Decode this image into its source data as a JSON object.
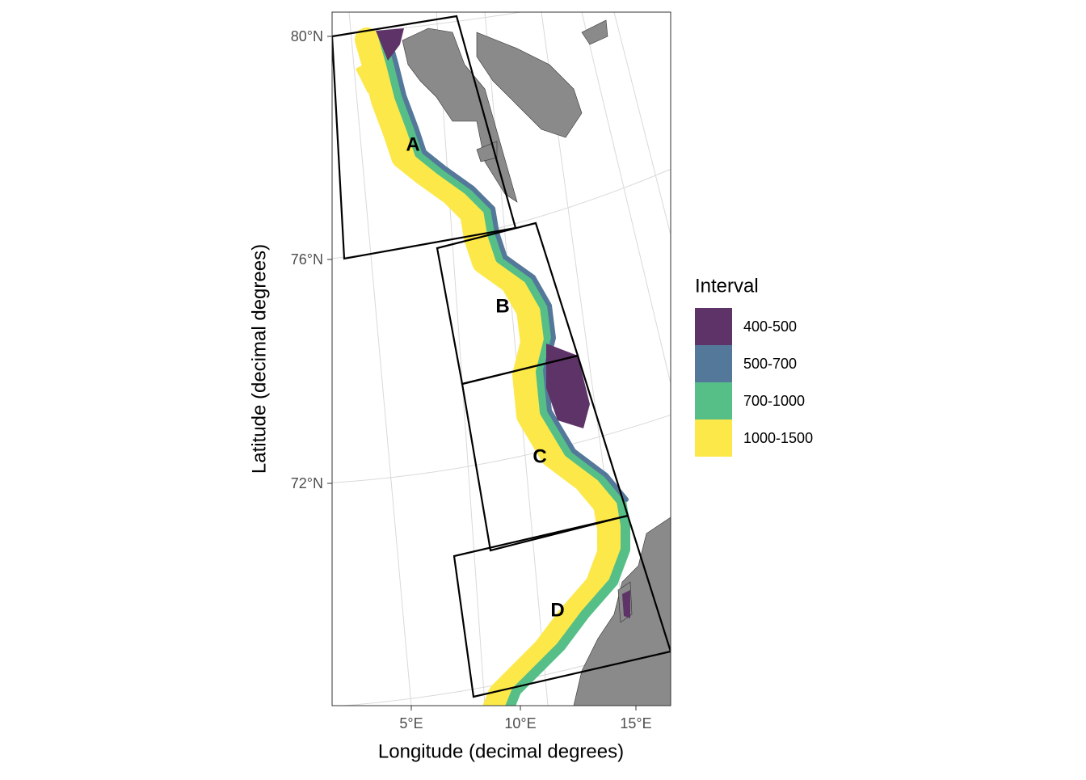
{
  "map": {
    "x_label": "Longitude (decimal degrees)",
    "y_label": "Latitude (decimal degrees)",
    "x_ticks": [
      "5°E",
      "10°E",
      "15°E"
    ],
    "y_ticks": [
      "80°N",
      "76°N",
      "72°N"
    ],
    "regions": [
      "A",
      "B",
      "C",
      "D"
    ],
    "legend": {
      "title": "Interval",
      "items": [
        {
          "label": "400-500",
          "color": "#5e3368"
        },
        {
          "label": "500-700",
          "color": "#54789a"
        },
        {
          "label": "700-1000",
          "color": "#56bf88"
        },
        {
          "label": "1000-1500",
          "color": "#fde84a"
        }
      ]
    }
  }
}
